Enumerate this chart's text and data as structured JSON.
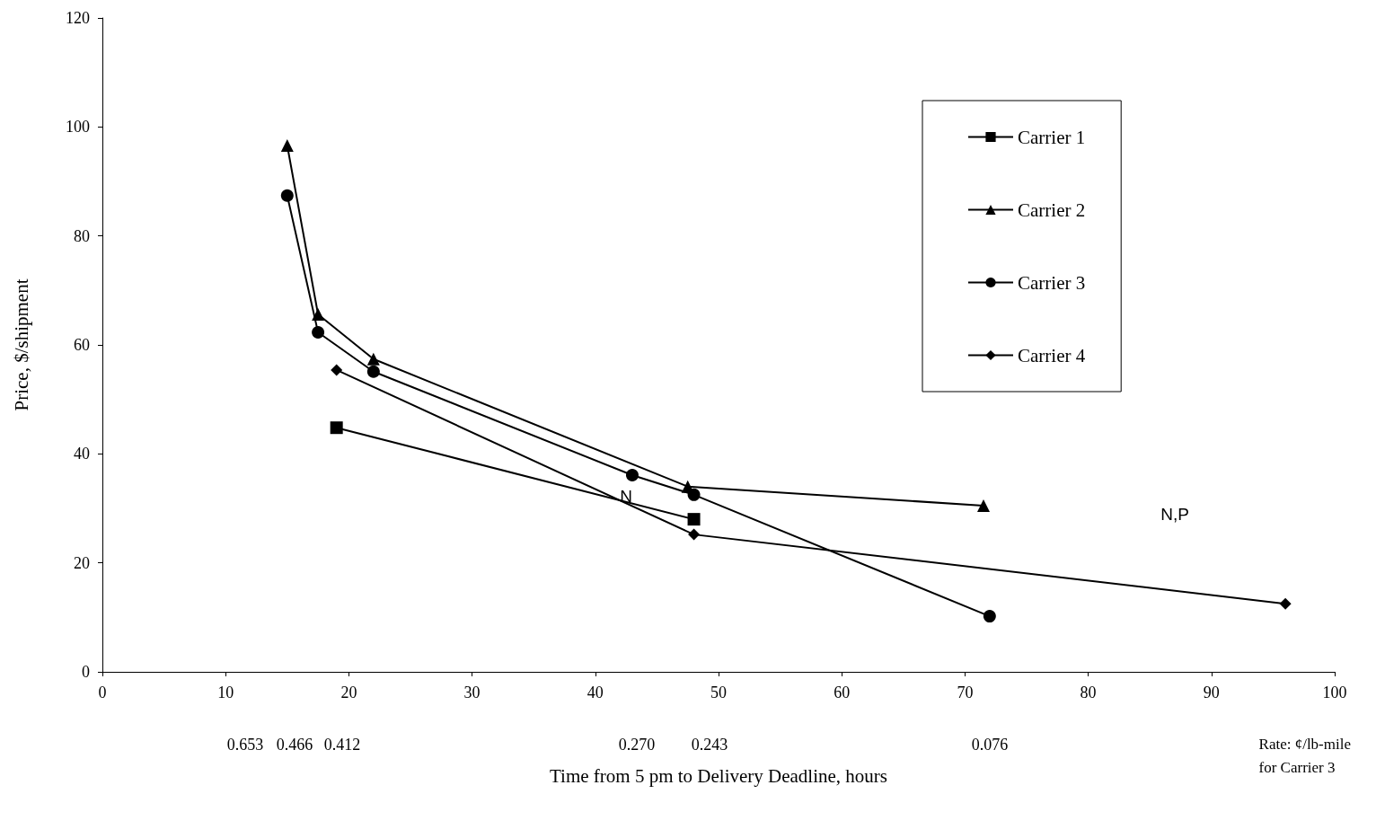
{
  "chart_data": {
    "type": "line",
    "xlabel": "Time from 5 pm to Delivery Deadline, hours",
    "ylabel": "Price, $/shipment",
    "series": [
      {
        "name": "Carrier 1",
        "color": "#000000",
        "marker": "square",
        "x": [
          19,
          48
        ],
        "values": [
          44.8,
          28.0
        ]
      },
      {
        "name": "Carrier 2",
        "color": "#000000",
        "marker": "triangle",
        "x": [
          15,
          17.5,
          22,
          47.5,
          71.5
        ],
        "values": [
          96.6,
          65.6,
          57.4,
          34.0,
          30.5
        ]
      },
      {
        "name": "Carrier 3",
        "color": "#000000",
        "marker": "circle",
        "x": [
          15,
          17.5,
          22,
          43,
          48,
          72
        ],
        "values": [
          87.4,
          62.3,
          55.1,
          36.1,
          32.5,
          10.2
        ]
      },
      {
        "name": "Carrier 4",
        "color": "#000000",
        "marker": "diamond",
        "x": [
          19,
          48,
          96
        ],
        "values": [
          55.4,
          25.2,
          12.5
        ]
      }
    ],
    "xlim": [
      0,
      100
    ],
    "xticks": [
      0,
      10,
      20,
      30,
      40,
      50,
      60,
      70,
      80,
      90,
      100
    ],
    "ylim": [
      0,
      120
    ],
    "yticks": [
      0,
      20,
      40,
      60,
      80,
      100,
      120
    ],
    "grid": false,
    "legend": "top right",
    "line_style": "solid",
    "annotations": [
      "N",
      "N,P",
      "0.653",
      "0.466",
      "0.412",
      "0.270",
      "0.243",
      "0.076",
      "Rate: ¢/lb-mile\nfor Carrier 3"
    ]
  }
}
